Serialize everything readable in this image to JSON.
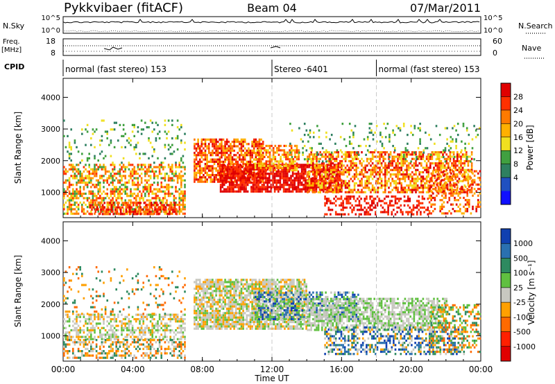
{
  "header": {
    "station": "Pykkvibaer (fitACF)",
    "beam": "Beam 04",
    "date": "07/Mar/2011"
  },
  "top_strip": {
    "left_label": "N.Sky",
    "left_ticks": [
      "10^5",
      "10^0"
    ],
    "right_ticks": [
      "10^5",
      "10^0"
    ],
    "right_label": "N.Search"
  },
  "freq_strip": {
    "left_label_line1": "Freq.",
    "left_label_line2": "[MHz]",
    "left_ticks": [
      "18",
      "8"
    ],
    "right_ticks": [
      "60",
      "0"
    ],
    "right_label": "Nave"
  },
  "cpid_strip": {
    "label": "CPID",
    "segments": [
      {
        "text": "normal (fast stereo) 153",
        "start_hour": 0
      },
      {
        "text": "Stereo -6401",
        "start_hour": 12
      },
      {
        "text": "normal (fast stereo) 153",
        "start_hour": 18
      }
    ]
  },
  "x_axis": {
    "ticks": [
      "00:00",
      "04:00",
      "08:00",
      "12:00",
      "16:00",
      "20:00",
      "00:00"
    ],
    "tick_hours": [
      0,
      4,
      8,
      12,
      16,
      20,
      24
    ],
    "title": "Time UT"
  },
  "colorbars": {
    "power": {
      "title": "Power [dB]",
      "labels": [
        "28",
        "24",
        "20",
        "16",
        "12",
        "8",
        "4"
      ],
      "colors": [
        "#e00000",
        "#ff3000",
        "#ff7a00",
        "#ffb000",
        "#f0e020",
        "#40a040",
        "#2e8060",
        "#2050c0",
        "#1010ff"
      ]
    },
    "velocity": {
      "title": "Velocity [m s⁻¹]",
      "labels": [
        "1000",
        "500",
        "100",
        "25",
        "-25",
        "-100",
        "-500",
        "-1000"
      ],
      "colors": [
        "#1040b0",
        "#2a70b0",
        "#2e8a60",
        "#60c040",
        "#c8c8c0",
        "#ffa000",
        "#ff6a00",
        "#ff2000",
        "#e00000"
      ]
    }
  },
  "chart_data": [
    {
      "type": "heatmap",
      "title": "",
      "ylabel": "Slant Range [km]",
      "xlabel": "",
      "y_ticks": [
        1000,
        2000,
        3000,
        4000
      ],
      "ylim": [
        200,
        4600
      ],
      "xlim_hours": [
        0,
        24
      ],
      "quantity": "Power [dB]",
      "bands": [
        {
          "start": 0.0,
          "end": 7.0,
          "lo": 300,
          "hi": 1900,
          "density": 0.55,
          "levels": [
            8,
            12,
            16,
            20,
            24
          ]
        },
        {
          "start": 0.0,
          "end": 7.0,
          "lo": 1900,
          "hi": 3300,
          "density": 0.12,
          "levels": [
            4,
            8,
            12
          ]
        },
        {
          "start": 1.5,
          "end": 6.5,
          "lo": 300,
          "hi": 700,
          "density": 0.6,
          "levels": [
            20,
            24,
            28
          ]
        },
        {
          "start": 7.5,
          "end": 11.5,
          "lo": 1300,
          "hi": 2700,
          "density": 0.7,
          "levels": [
            16,
            20,
            24,
            28
          ]
        },
        {
          "start": 9.0,
          "end": 16.0,
          "lo": 1000,
          "hi": 1900,
          "density": 0.8,
          "levels": [
            24,
            28,
            28
          ]
        },
        {
          "start": 11.0,
          "end": 13.5,
          "lo": 1700,
          "hi": 2500,
          "density": 0.6,
          "levels": [
            12,
            16,
            20,
            24
          ]
        },
        {
          "start": 14.0,
          "end": 23.5,
          "lo": 1000,
          "hi": 2300,
          "density": 0.6,
          "levels": [
            12,
            16,
            20,
            24,
            28
          ]
        },
        {
          "start": 15.0,
          "end": 21.0,
          "lo": 300,
          "hi": 900,
          "density": 0.45,
          "levels": [
            24,
            28
          ]
        },
        {
          "start": 13.0,
          "end": 24.0,
          "lo": 2000,
          "hi": 3200,
          "density": 0.1,
          "levels": [
            4,
            8,
            12
          ]
        },
        {
          "start": 21.0,
          "end": 24.0,
          "lo": 300,
          "hi": 1700,
          "density": 0.35,
          "levels": [
            16,
            20,
            24,
            28
          ]
        }
      ]
    },
    {
      "type": "heatmap",
      "title": "",
      "ylabel": "Slant Range [km]",
      "xlabel": "Time UT",
      "y_ticks": [
        1000,
        2000,
        3000,
        4000
      ],
      "ylim": [
        200,
        4600
      ],
      "xlim_hours": [
        0,
        24
      ],
      "quantity": "Velocity [m s-1]",
      "bands": [
        {
          "start": 0.0,
          "end": 7.0,
          "lo": 900,
          "hi": 1700,
          "density": 0.5,
          "levels": [
            -25,
            -25,
            25,
            -100
          ]
        },
        {
          "start": 0.0,
          "end": 7.0,
          "lo": 300,
          "hi": 900,
          "density": 0.45,
          "levels": [
            -100,
            -500,
            -25,
            100
          ]
        },
        {
          "start": 0.0,
          "end": 7.0,
          "lo": 1700,
          "hi": 3200,
          "density": 0.12,
          "levels": [
            -100,
            -500,
            100
          ]
        },
        {
          "start": 7.5,
          "end": 14.0,
          "lo": 1200,
          "hi": 2800,
          "density": 0.8,
          "levels": [
            -25,
            -25,
            25,
            -100
          ]
        },
        {
          "start": 11.0,
          "end": 17.0,
          "lo": 1500,
          "hi": 2400,
          "density": 0.6,
          "levels": [
            -25,
            25,
            500,
            1000
          ]
        },
        {
          "start": 14.0,
          "end": 22.0,
          "lo": 1200,
          "hi": 2200,
          "density": 0.7,
          "levels": [
            -25,
            -25,
            25
          ]
        },
        {
          "start": 15.0,
          "end": 23.0,
          "lo": 400,
          "hi": 1300,
          "density": 0.45,
          "levels": [
            100,
            500,
            1000,
            -25,
            -100
          ]
        },
        {
          "start": 21.0,
          "end": 24.0,
          "lo": 500,
          "hi": 2000,
          "density": 0.35,
          "levels": [
            100,
            -100,
            -500,
            25
          ]
        }
      ]
    }
  ]
}
